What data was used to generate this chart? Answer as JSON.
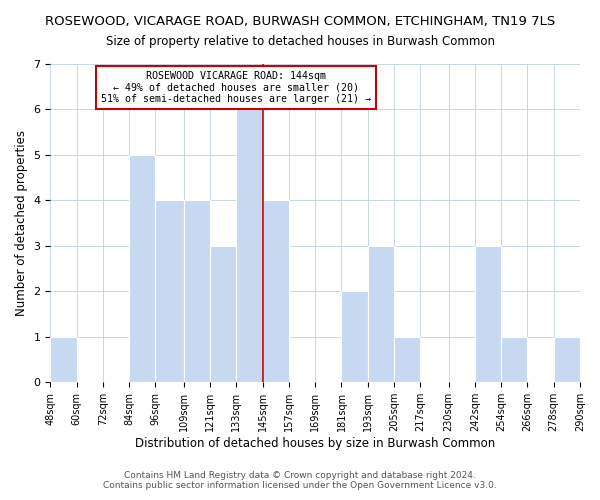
{
  "title": "ROSEWOOD, VICARAGE ROAD, BURWASH COMMON, ETCHINGHAM, TN19 7LS",
  "subtitle": "Size of property relative to detached houses in Burwash Common",
  "xlabel": "Distribution of detached houses by size in Burwash Common",
  "ylabel": "Number of detached properties",
  "footer1": "Contains HM Land Registry data © Crown copyright and database right 2024.",
  "footer2": "Contains public sector information licensed under the Open Government Licence v3.0.",
  "bar_edges": [
    48,
    60,
    72,
    84,
    96,
    109,
    121,
    133,
    145,
    157,
    169,
    181,
    193,
    205,
    217,
    230,
    242,
    254,
    266,
    278,
    290
  ],
  "bar_heights": [
    1,
    0,
    0,
    5,
    4,
    4,
    3,
    6,
    4,
    0,
    0,
    2,
    3,
    1,
    0,
    0,
    3,
    1,
    0,
    1
  ],
  "bar_color": "#c6d9f0",
  "bar_edge_color": "#ffffff",
  "reference_line_x": 145,
  "reference_line_color": "#cc0000",
  "ylim": [
    0,
    7
  ],
  "annotation_text_line1": "ROSEWOOD VICARAGE ROAD: 144sqm",
  "annotation_text_line2": "← 49% of detached houses are smaller (20)",
  "annotation_text_line3": "51% of semi-detached houses are larger (21) →",
  "annotation_box_color": "#cc0000",
  "annotation_fill": "#ffffff",
  "title_fontsize": 9.5,
  "subtitle_fontsize": 8.5,
  "xlabel_fontsize": 8.5,
  "ylabel_fontsize": 8.5,
  "tick_fontsize": 7,
  "ytick_fontsize": 8,
  "tick_labels": [
    "48sqm",
    "60sqm",
    "72sqm",
    "84sqm",
    "96sqm",
    "109sqm",
    "121sqm",
    "133sqm",
    "145sqm",
    "157sqm",
    "169sqm",
    "181sqm",
    "193sqm",
    "205sqm",
    "217sqm",
    "230sqm",
    "242sqm",
    "254sqm",
    "266sqm",
    "278sqm",
    "290sqm"
  ],
  "footer_fontsize": 6.5,
  "annotation_fontsize": 7.2
}
